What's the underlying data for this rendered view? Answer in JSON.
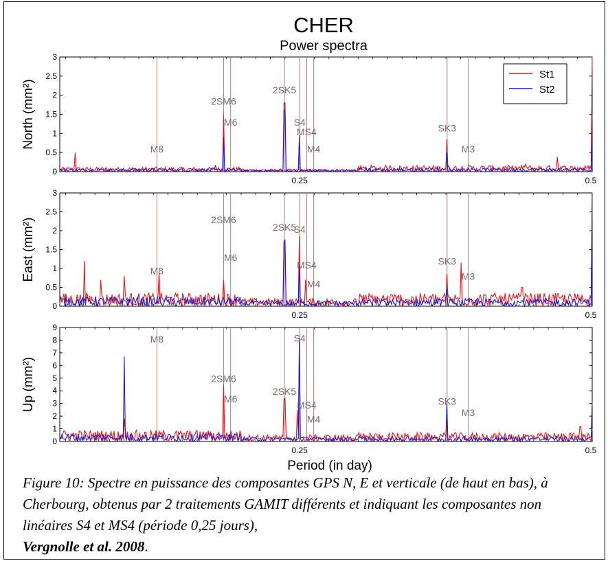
{
  "chart_data": {
    "type": "line",
    "title": "CHER",
    "subtitle": "Power spectra",
    "xlabel": "Period (in day)",
    "x_tick_labels": [
      "0.25",
      "0.5"
    ],
    "colors": {
      "St1": "#e8141c",
      "St2": "#1c1cd6",
      "constituent_line": "#b08080",
      "constituent_label": "#7a6a6a"
    },
    "legend": {
      "placement": "top-right",
      "entries": [
        "St1",
        "St2"
      ]
    },
    "constituents": [
      {
        "name": "M8",
        "period": 0.128
      },
      {
        "name": "2SM6",
        "period": 0.185
      },
      {
        "name": "M6",
        "period": 0.191
      },
      {
        "name": "2SK5",
        "period": 0.237
      },
      {
        "name": "S4",
        "period": 0.25
      },
      {
        "name": "MS4",
        "period": 0.256
      },
      {
        "name": "M4",
        "period": 0.262
      },
      {
        "name": "SK3",
        "period": 0.376
      },
      {
        "name": "M3",
        "period": 0.394
      }
    ],
    "panels": [
      {
        "ylabel": "North (mm²)",
        "ylim": [
          0,
          3
        ],
        "y_ticks": [
          "0",
          "0.5",
          "1",
          "1.5",
          "2",
          "2.5",
          "3"
        ],
        "peaks": {
          "St1": [
            [
              0.058,
              0.5
            ],
            [
              0.178,
              0.18
            ],
            [
              0.185,
              1.5
            ],
            [
              0.237,
              1.8
            ],
            [
              0.25,
              0.95
            ],
            [
              0.376,
              0.85
            ],
            [
              0.443,
              0.2
            ],
            [
              0.47,
              0.38
            ],
            [
              0.5,
              3.0
            ]
          ],
          "St2": [
            [
              0.185,
              0.9
            ],
            [
              0.237,
              1.6
            ],
            [
              0.25,
              0.9
            ],
            [
              0.376,
              0.5
            ],
            [
              0.49,
              0.1
            ],
            [
              0.5,
              1.5
            ]
          ]
        },
        "label_values": {
          "M8": 0.5,
          "2SM6": 1.75,
          "M6": 1.2,
          "2SK5": 2.05,
          "S4": 1.2,
          "MS4": 0.95,
          "M4": 0.5,
          "SK3": 1.05,
          "M3": 0.5
        }
      },
      {
        "ylabel": "East (mm²)",
        "ylim": [
          0,
          3
        ],
        "y_ticks": [
          "0",
          "0.5",
          "1",
          "1.5",
          "2",
          "2.5",
          "3"
        ],
        "peaks": {
          "St1": [
            [
              0.066,
              1.2
            ],
            [
              0.08,
              0.7
            ],
            [
              0.1,
              0.8
            ],
            [
              0.13,
              0.9
            ],
            [
              0.185,
              0.7
            ],
            [
              0.237,
              1.75
            ],
            [
              0.25,
              1.85
            ],
            [
              0.255,
              0.7
            ],
            [
              0.376,
              0.85
            ],
            [
              0.388,
              1.15
            ],
            [
              0.44,
              0.5
            ],
            [
              0.5,
              3.0
            ]
          ],
          "St2": [
            [
              0.237,
              1.7
            ],
            [
              0.25,
              1.1
            ],
            [
              0.376,
              0.45
            ],
            [
              0.5,
              3.0
            ]
          ]
        },
        "label_values": {
          "M8": 0.85,
          "2SM6": 2.2,
          "M6": 1.2,
          "2SK5": 2.0,
          "S4": 1.95,
          "MS4": 1.0,
          "M4": 0.5,
          "SK3": 1.1,
          "M3": 0.7
        }
      },
      {
        "ylabel": "Up (mm²)",
        "ylim": [
          0,
          9
        ],
        "y_ticks": [
          "0",
          "1",
          "2",
          "3",
          "4",
          "5",
          "6",
          "7",
          "8",
          "9"
        ],
        "peaks": {
          "St1": [
            [
              0.1,
              1.8
            ],
            [
              0.185,
              4.5
            ],
            [
              0.237,
              3.4
            ],
            [
              0.248,
              2.5
            ],
            [
              0.25,
              7.8
            ],
            [
              0.376,
              1.8
            ],
            [
              0.49,
              1.2
            ],
            [
              0.5,
              1.0
            ]
          ],
          "St2": [
            [
              0.1,
              6.7
            ],
            [
              0.25,
              8.2
            ],
            [
              0.376,
              3.0
            ],
            [
              0.5,
              3.2
            ]
          ]
        },
        "label_values": {
          "M8": 7.8,
          "2SM6": 4.7,
          "M6": 3.1,
          "2SK5": 3.7,
          "S4": 7.9,
          "MS4": 2.6,
          "M4": 1.5,
          "SK3": 2.9,
          "M3": 2.0
        }
      }
    ]
  },
  "caption": {
    "body": "Figure 10: Spectre en puissance des composantes GPS N, E et verticale (de haut en bas), à Cherbourg, obtenus par 2 traitements GAMIT différents et indiquant les composantes non linéaires S4 et MS4 (période 0,25 jours),",
    "citation": "Vergnolle et al. 2008"
  }
}
